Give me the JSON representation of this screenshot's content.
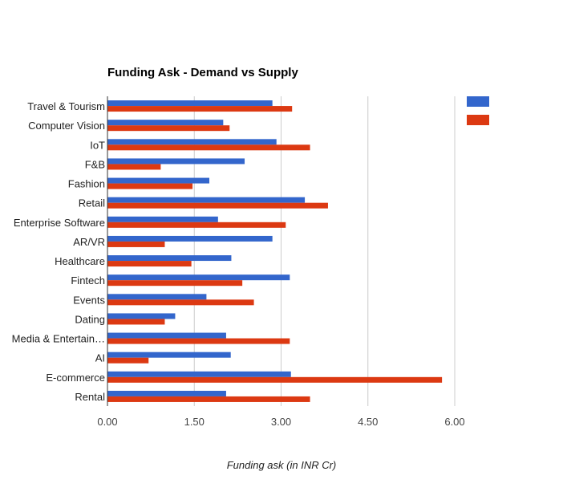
{
  "chart_data": {
    "type": "bar",
    "orientation": "horizontal",
    "title": "Funding Ask - Demand vs Supply",
    "xlabel": "Funding ask (in INR Cr)",
    "ylabel": "",
    "xlim": [
      0,
      6
    ],
    "ticks": [
      {
        "value": 0,
        "label": "0.00"
      },
      {
        "value": 1.5,
        "label": "1.50"
      },
      {
        "value": 3,
        "label": "3.00"
      },
      {
        "value": 4.5,
        "label": "4.50"
      },
      {
        "value": 6,
        "label": "6.00"
      }
    ],
    "grid": true,
    "legend_position": "right",
    "categories": [
      "Travel & Tourism",
      "Computer Vision",
      "IoT",
      "F&B",
      "Fashion",
      "Retail",
      "Enterprise Software",
      "AR/VR",
      "Healthcare",
      "Fintech",
      "Events",
      "Dating",
      "Media & Entertain…",
      "AI",
      "E-commerce",
      "Rental"
    ],
    "series": [
      {
        "color": "#3366cc",
        "values": [
          2.85,
          2.0,
          2.92,
          2.37,
          1.76,
          3.41,
          1.91,
          2.85,
          2.14,
          3.15,
          1.71,
          1.17,
          2.05,
          2.13,
          3.17,
          2.05
        ]
      },
      {
        "color": "#dc3912",
        "values": [
          3.19,
          2.11,
          3.5,
          0.92,
          1.47,
          3.81,
          3.08,
          0.99,
          1.45,
          2.33,
          2.53,
          0.99,
          3.15,
          0.71,
          5.78,
          3.5
        ]
      }
    ]
  }
}
